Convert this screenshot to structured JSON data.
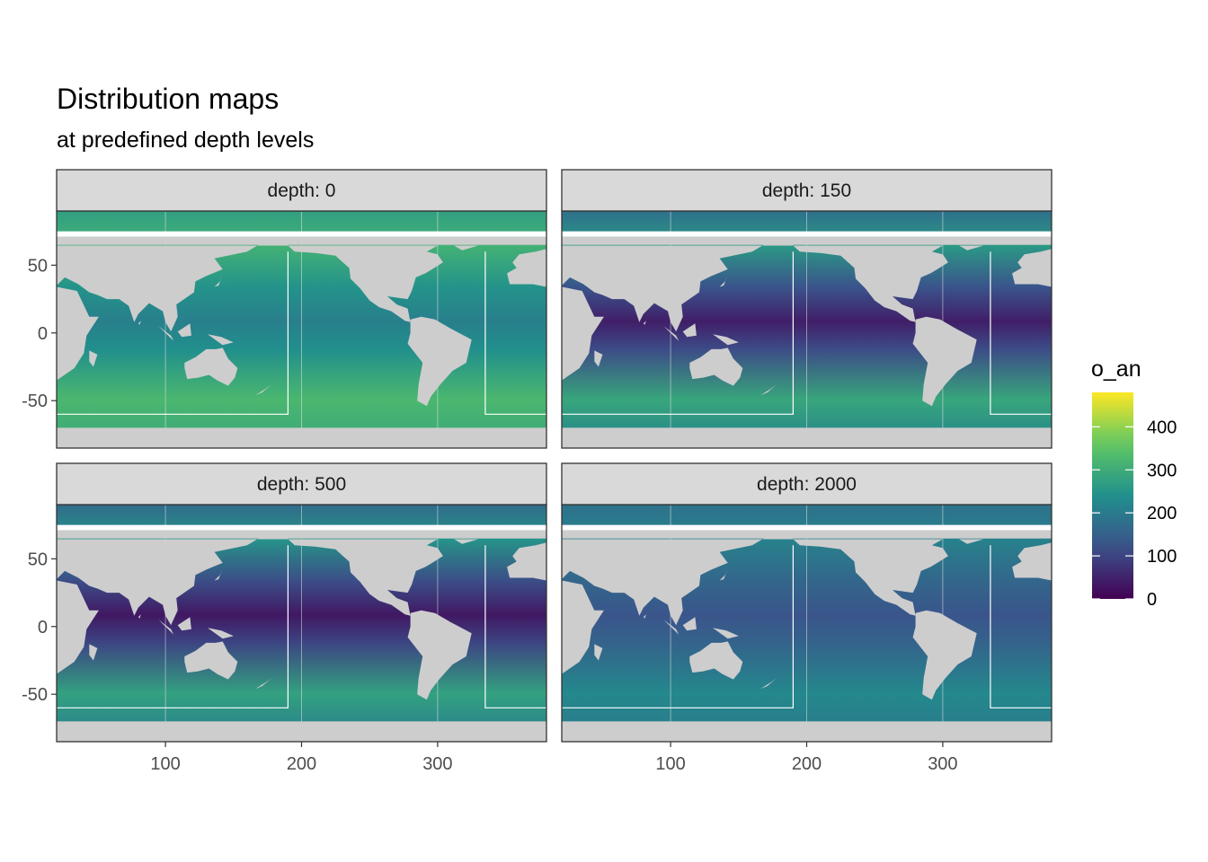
{
  "chart_data": {
    "type": "heatmap",
    "title": "Distribution maps",
    "subtitle": "at predefined depth levels",
    "facet_label_prefix": "depth: ",
    "facets": [
      {
        "depth": "0",
        "low": 200,
        "high": 330
      },
      {
        "depth": "150",
        "low": 30,
        "high": 300
      },
      {
        "depth": "500",
        "low": 20,
        "high": 290
      },
      {
        "depth": "2000",
        "low": 120,
        "high": 230
      }
    ],
    "x_ticks": [
      100,
      200,
      300
    ],
    "y_ticks": [
      50,
      0,
      -50
    ],
    "x_tick_labels": [
      "100",
      "200",
      "300"
    ],
    "y_tick_labels": [
      "50",
      "0",
      "-50"
    ],
    "xlim": [
      20,
      380
    ],
    "ylim": [
      -85,
      90
    ],
    "legend": {
      "title": "o_an",
      "position": "right",
      "range": [
        0,
        480
      ],
      "breaks": [
        400,
        300,
        200,
        100,
        0
      ],
      "break_labels": [
        "400",
        "300",
        "200",
        "100",
        "0"
      ]
    },
    "colors": {
      "land": "#cdcdcd",
      "strip_fill": "#d9d9d9",
      "panel_border": "#333333",
      "gridline": "#ebebeb",
      "viridis": [
        "#440154",
        "#3b528b",
        "#21908c",
        "#5dc863",
        "#fde725"
      ]
    }
  }
}
